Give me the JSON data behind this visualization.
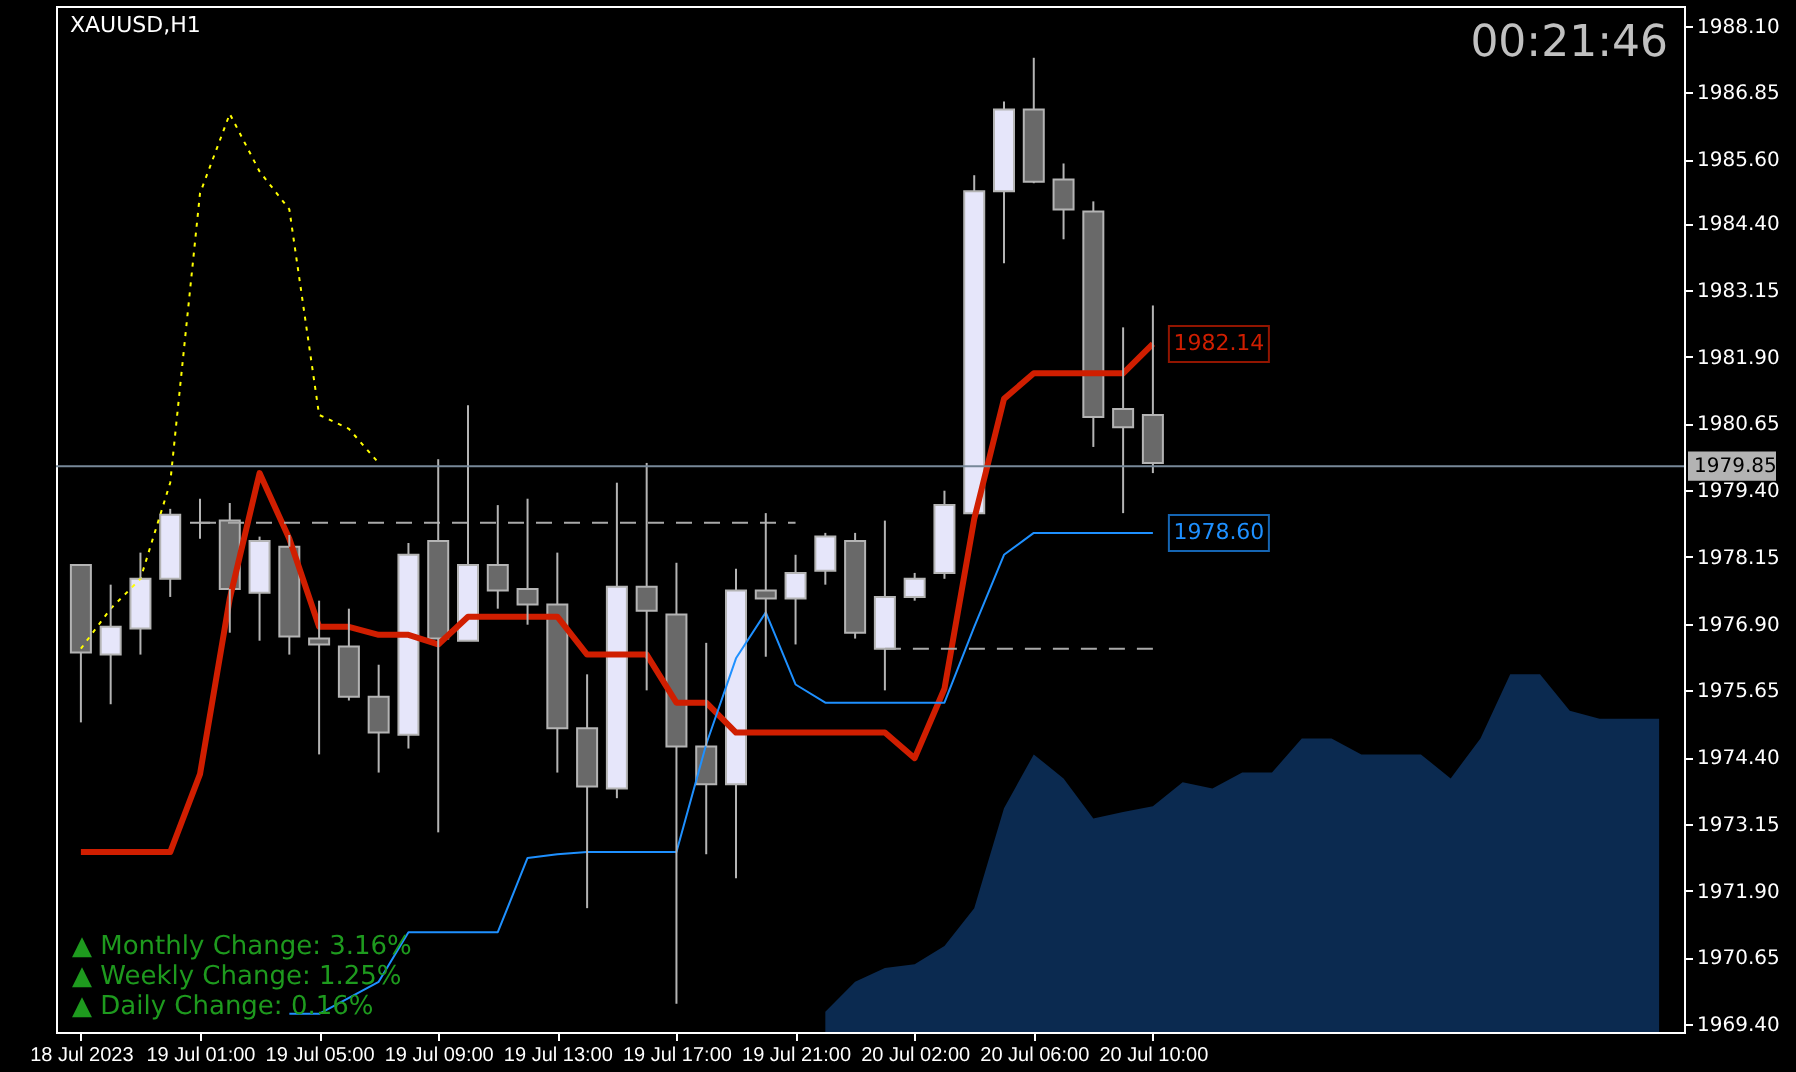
{
  "chart_data": {
    "type": "candlestick",
    "title": "XAUUSD,H1",
    "categories": [
      "18 Jul 2023",
      null,
      null,
      null,
      "19 Jul 01:00",
      null,
      null,
      null,
      "19 Jul 05:00",
      null,
      null,
      null,
      "19 Jul 09:00",
      null,
      null,
      null,
      "19 Jul 13:00",
      null,
      null,
      null,
      "19 Jul 17:00",
      null,
      null,
      null,
      "19 Jul 21:00",
      null,
      null,
      null,
      "20 Jul 02:00",
      null,
      null,
      null,
      "20 Jul 06:00",
      null,
      null,
      null,
      "20 Jul 10:00",
      null,
      null,
      null,
      null,
      null,
      null,
      null,
      null,
      null,
      null,
      null,
      null,
      null,
      null,
      null,
      null,
      null
    ],
    "ohlc": [
      [
        1978.0,
        1978.0,
        1975.05,
        1976.36
      ],
      [
        1976.32,
        1977.63,
        1975.39,
        1976.84
      ],
      [
        1976.81,
        1978.23,
        1976.32,
        1977.74
      ],
      [
        1977.74,
        1979.05,
        1977.4,
        1978.94
      ],
      [
        1978.79,
        1979.24,
        1978.49,
        1978.79
      ],
      [
        1978.83,
        1979.16,
        1976.73,
        1977.55
      ],
      [
        1977.48,
        1978.53,
        1976.58,
        1978.45
      ],
      [
        1978.34,
        1978.56,
        1976.32,
        1976.66
      ],
      [
        1976.62,
        1977.33,
        1974.45,
        1976.51
      ],
      [
        1976.47,
        1977.18,
        1975.46,
        1975.53
      ],
      [
        1975.53,
        1976.13,
        1974.11,
        1974.86
      ],
      [
        1974.82,
        1978.41,
        1974.56,
        1978.19
      ],
      [
        1978.45,
        1979.98,
        1972.99,
        1976.62
      ],
      [
        1976.58,
        1980.99,
        1976.58,
        1978.0
      ],
      [
        1978.0,
        1979.12,
        1977.18,
        1977.52
      ],
      [
        1977.55,
        1979.24,
        1976.88,
        1977.26
      ],
      [
        1977.26,
        1978.23,
        1974.11,
        1974.94
      ],
      [
        1974.94,
        1975.95,
        1971.57,
        1973.85
      ],
      [
        1973.81,
        1979.54,
        1973.63,
        1977.59
      ],
      [
        1977.59,
        1979.91,
        1975.65,
        1977.14
      ],
      [
        1977.07,
        1978.04,
        1969.78,
        1974.6
      ],
      [
        1974.6,
        1976.54,
        1972.58,
        1973.89
      ],
      [
        1973.89,
        1977.93,
        1972.13,
        1977.52
      ],
      [
        1977.52,
        1978.97,
        1976.28,
        1977.37
      ],
      [
        1977.37,
        1978.19,
        1976.51,
        1977.85
      ],
      [
        1977.89,
        1978.6,
        1977.63,
        1978.53
      ],
      [
        1978.45,
        1978.6,
        1976.62,
        1976.73
      ],
      [
        1976.43,
        1978.83,
        1975.65,
        1977.4
      ],
      [
        1977.4,
        1977.85,
        1977.33,
        1977.74
      ],
      [
        1977.85,
        1979.39,
        1977.74,
        1979.12
      ],
      [
        1978.97,
        1985.3,
        1978.97,
        1985.0
      ],
      [
        1985.0,
        1986.68,
        1983.65,
        1986.53
      ],
      [
        1986.53,
        1987.5,
        1985.15,
        1985.18
      ],
      [
        1985.22,
        1985.52,
        1984.1,
        1984.66
      ],
      [
        1984.62,
        1984.81,
        1980.21,
        1980.77
      ],
      [
        1980.92,
        1982.45,
        1978.97,
        1980.58
      ],
      [
        1980.81,
        1982.86,
        1979.72,
        1979.91
      ],
      null,
      null,
      null,
      null,
      null,
      null,
      null,
      null,
      null,
      null,
      null,
      null,
      null,
      null,
      null,
      null,
      null
    ],
    "series": [
      {
        "type": "area",
        "color": "#0b2a50",
        "values": [
          null,
          null,
          null,
          null,
          null,
          null,
          null,
          null,
          null,
          null,
          null,
          null,
          null,
          null,
          null,
          null,
          null,
          null,
          null,
          null,
          null,
          null,
          null,
          null,
          null,
          1969.63,
          1970.19,
          1970.45,
          1970.52,
          1970.86,
          1971.57,
          1973.44,
          1974.45,
          1974.0,
          1973.25,
          1973.37,
          1973.48,
          1973.93,
          1973.81,
          1974.11,
          1974.11,
          1974.75,
          1974.75,
          1974.45,
          1974.45,
          1974.45,
          1974.0,
          1974.75,
          1975.95,
          1975.95,
          1975.27,
          1975.12,
          1975.12,
          1975.12
        ]
      },
      {
        "type": "line",
        "color": "#d01e00",
        "values": [
          1972.62,
          1972.62,
          1972.62,
          1972.62,
          1974.08,
          1977.37,
          1979.72,
          1978.49,
          1976.84,
          1976.84,
          1976.69,
          1976.69,
          1976.51,
          1977.03,
          1977.03,
          1977.03,
          1977.03,
          1976.32,
          1976.32,
          1976.32,
          1975.42,
          1975.42,
          1974.86,
          1974.86,
          1974.86,
          1974.86,
          1974.86,
          1974.86,
          1974.38,
          1975.68,
          1978.86,
          1981.11,
          1981.59,
          1981.59,
          1981.59,
          1981.59,
          1982.14,
          null,
          null,
          null,
          null,
          null,
          null,
          null,
          null,
          null,
          null,
          null,
          null,
          null,
          null,
          null,
          null,
          null
        ],
        "value_labels": [
          null,
          null,
          null,
          null,
          null,
          null,
          null,
          null,
          null,
          null,
          null,
          null,
          null,
          null,
          null,
          null,
          null,
          null,
          null,
          null,
          null,
          null,
          null,
          null,
          null,
          null,
          null,
          null,
          null,
          null,
          null,
          null,
          null,
          null,
          null,
          null,
          "1982.14",
          null,
          null,
          null,
          null,
          null,
          null,
          null,
          null,
          null,
          null,
          null,
          null,
          null,
          null,
          null,
          null,
          null
        ]
      },
      {
        "type": "line",
        "color": "#1e90ff",
        "values": [
          null,
          null,
          null,
          null,
          null,
          null,
          null,
          1969.59,
          1969.59,
          1969.89,
          1970.19,
          1971.12,
          1971.12,
          1971.12,
          1971.12,
          1972.51,
          1972.58,
          1972.62,
          1972.62,
          1972.62,
          1972.62,
          1974.64,
          1976.25,
          1977.11,
          1975.76,
          1975.42,
          1975.42,
          1975.42,
          1975.42,
          1975.42,
          1976.84,
          1978.19,
          1978.6,
          1978.6,
          1978.6,
          1978.6,
          1978.6,
          null,
          null,
          null,
          null,
          null,
          null,
          null,
          null,
          null,
          null,
          null,
          null,
          null,
          null,
          null,
          null,
          null
        ],
        "value_labels": [
          null,
          null,
          null,
          null,
          null,
          null,
          null,
          null,
          null,
          null,
          null,
          null,
          null,
          null,
          null,
          null,
          null,
          null,
          null,
          null,
          null,
          null,
          null,
          null,
          null,
          null,
          null,
          null,
          null,
          null,
          null,
          null,
          null,
          null,
          null,
          null,
          "1978.60",
          null,
          null,
          null,
          null,
          null,
          null,
          null,
          null,
          null,
          null,
          null,
          null,
          null,
          null,
          null,
          null,
          null
        ]
      },
      {
        "type": "line",
        "color": "#ffff00",
        "line_style": "dotted",
        "values": [
          1976.43,
          1977.18,
          1977.74,
          1979.54,
          1984.96,
          1986.45,
          1985.37,
          1984.66,
          1980.81,
          1980.55,
          1979.91,
          null,
          null,
          null,
          null,
          null,
          null,
          null,
          null,
          null,
          null,
          null,
          null,
          null,
          null,
          null,
          null,
          null,
          null,
          null,
          null,
          null,
          null,
          null,
          null,
          null,
          null,
          null,
          null,
          null,
          null,
          null,
          null,
          null,
          null,
          null,
          null,
          null,
          null,
          null,
          null,
          null,
          null,
          null
        ]
      },
      {
        "type": "line",
        "color": "#a9a9a9",
        "line_style": "dashed",
        "values": [
          null,
          null,
          null,
          null,
          1978.79,
          1978.79,
          1978.79,
          1978.79,
          1978.79,
          1978.79,
          1978.79,
          1978.79,
          1978.79,
          1978.79,
          1978.79,
          1978.79,
          1978.79,
          1978.79,
          1978.79,
          1978.79,
          1978.79,
          1978.79,
          1978.79,
          1978.79,
          1978.79,
          null,
          null,
          null,
          null,
          null,
          null,
          null,
          null,
          null,
          null,
          null,
          null,
          null,
          null,
          null,
          null,
          null,
          null,
          null,
          null,
          null,
          null,
          null,
          null,
          null,
          null,
          null,
          null,
          null
        ]
      },
      {
        "type": "line",
        "color": "#a9a9a9",
        "line_style": "dashed",
        "values": [
          null,
          null,
          null,
          null,
          null,
          null,
          null,
          null,
          null,
          null,
          null,
          null,
          null,
          null,
          null,
          null,
          null,
          null,
          null,
          null,
          null,
          null,
          null,
          null,
          null,
          null,
          null,
          1976.43,
          1976.43,
          1976.43,
          1976.43,
          1976.43,
          1976.43,
          1976.43,
          1976.43,
          1976.43,
          1976.43,
          null,
          null,
          null,
          null,
          null,
          null,
          null,
          null,
          null,
          null,
          null,
          null,
          null,
          null,
          null,
          null,
          null
        ]
      }
    ],
    "ylim": [
      1969.25,
      1988.47
    ],
    "yticks": [
      {
        "value": 1988.1,
        "label": "1988.10"
      },
      1986.85,
      {
        "value": 1985.6,
        "label": "1985.60"
      },
      {
        "value": 1984.4,
        "label": "1984.40"
      },
      1983.15,
      {
        "value": 1981.9,
        "label": "1981.90"
      },
      1980.65,
      {
        "value": 1979.4,
        "label": "1979.40"
      },
      1978.15,
      {
        "value": 1976.9,
        "label": "1976.90"
      },
      1975.65,
      {
        "value": 1974.4,
        "label": "1974.40"
      },
      1973.15,
      {
        "value": 1971.9,
        "label": "1971.90"
      },
      1970.65,
      {
        "value": 1969.4,
        "label": "1969.40"
      }
    ],
    "ref_lines": [
      {
        "axis": "y",
        "value": 1979.85,
        "label": "1979.85",
        "color": "#778899"
      }
    ],
    "annotations": [
      "00:21:46",
      "▲ Monthly Change: 3.16%",
      "▲ Weekly Change: 1.25%",
      "▲ Daily Change: 0.16%"
    ]
  }
}
